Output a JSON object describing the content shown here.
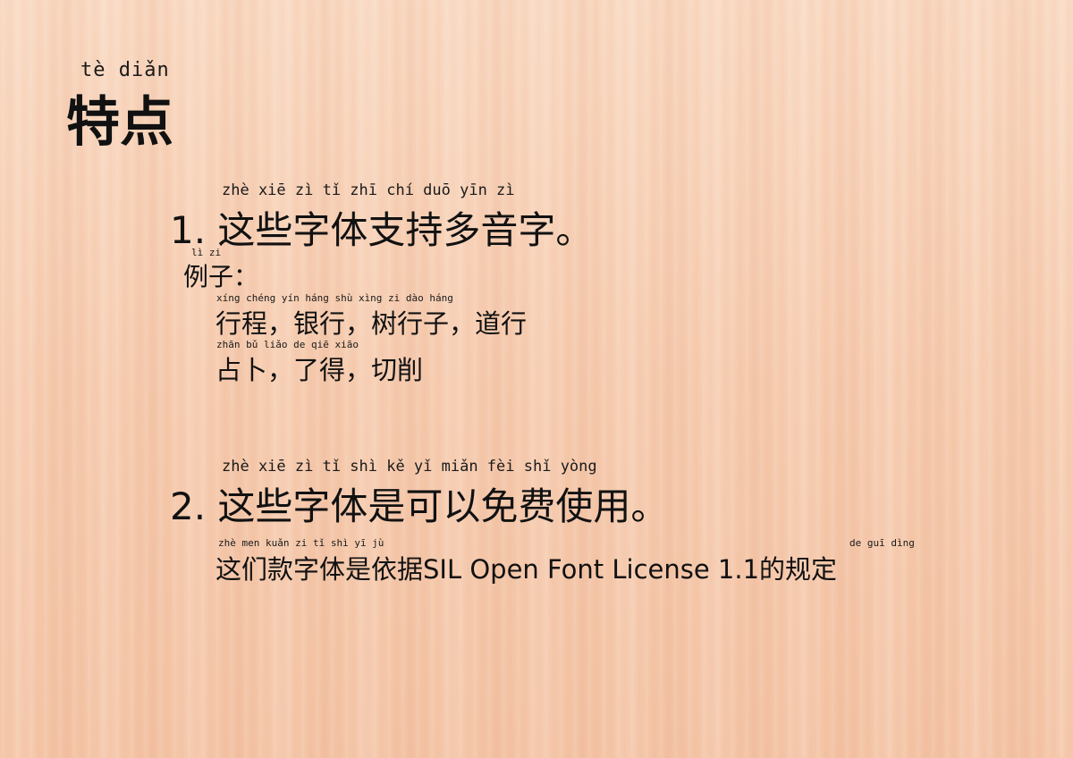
{
  "title": {
    "pinyin": "tè  diǎn",
    "text": "特点"
  },
  "section1": {
    "pinyin": "zhè  xiē  zì  tǐ  zhī  chí  duō  yīn  zì",
    "heading": "1. 这些字体支持多音字。",
    "example_pinyin": "lì  zi",
    "example_label": "例子：",
    "line1_pinyin": "xíng chéng    yín háng    shù xìng zi     dào háng",
    "line1": "行程，银行，树行子，道行",
    "line2_pinyin": "zhān bǔ     liǎo de     qiē xiāo",
    "line2": "占卜，了得，切削"
  },
  "section2": {
    "pinyin": "zhè  xiē  zì  tǐ  shì  kě  yǐ  miǎn fèi  shǐ yòng",
    "heading": "2. 这些字体是可以免费使用。",
    "body_pinyin": "zhè men kuǎn zi  tǐ  shì  yī  jù",
    "body_end_pinyin": "de  guī dìng",
    "body": "这们款字体是依据SIL Open Font License 1.1的规定"
  }
}
